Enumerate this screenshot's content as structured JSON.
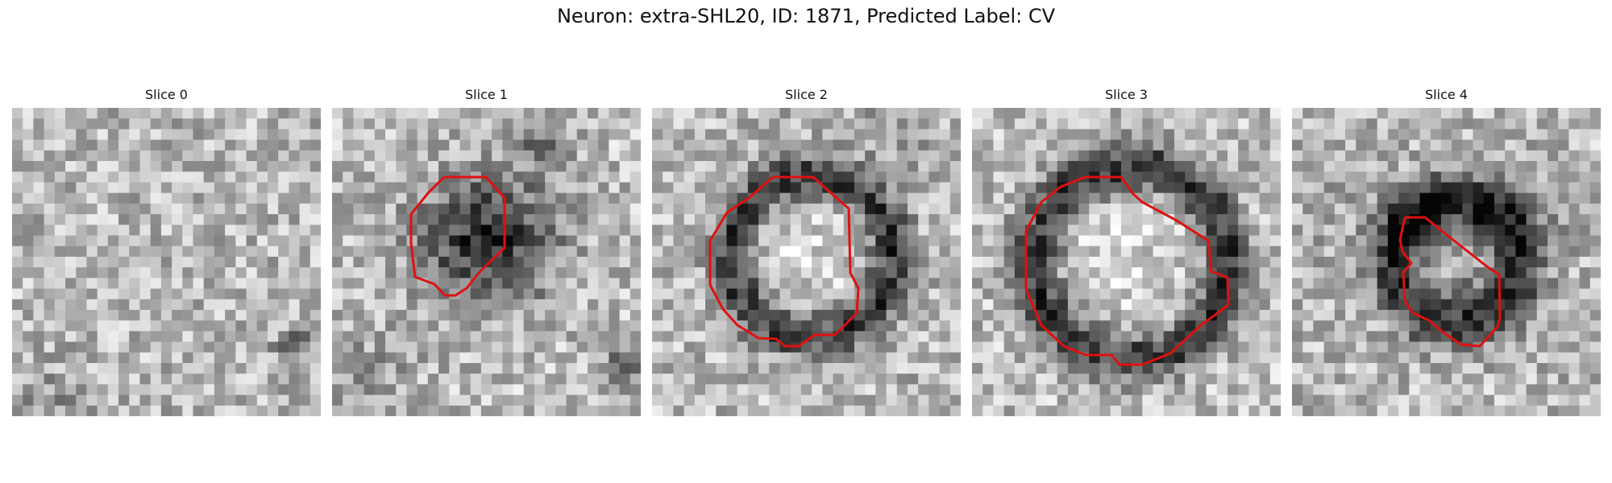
{
  "figure": {
    "title": "Neuron: extra-SHL20, ID: 1871, Predicted Label: CV"
  },
  "contour_color": "#e01010",
  "image_colormap": "gray",
  "panels": [
    {
      "title": "Slice 0",
      "has_contour": false
    },
    {
      "title": "Slice 1",
      "has_contour": true,
      "feature": "dark filled blob"
    },
    {
      "title": "Slice 2",
      "has_contour": true,
      "feature": "bright center with dark ring"
    },
    {
      "title": "Slice 3",
      "has_contour": true,
      "feature": "bright center with dark ring"
    },
    {
      "title": "Slice 4",
      "has_contour": true,
      "feature": "dark irregular ring"
    }
  ]
}
